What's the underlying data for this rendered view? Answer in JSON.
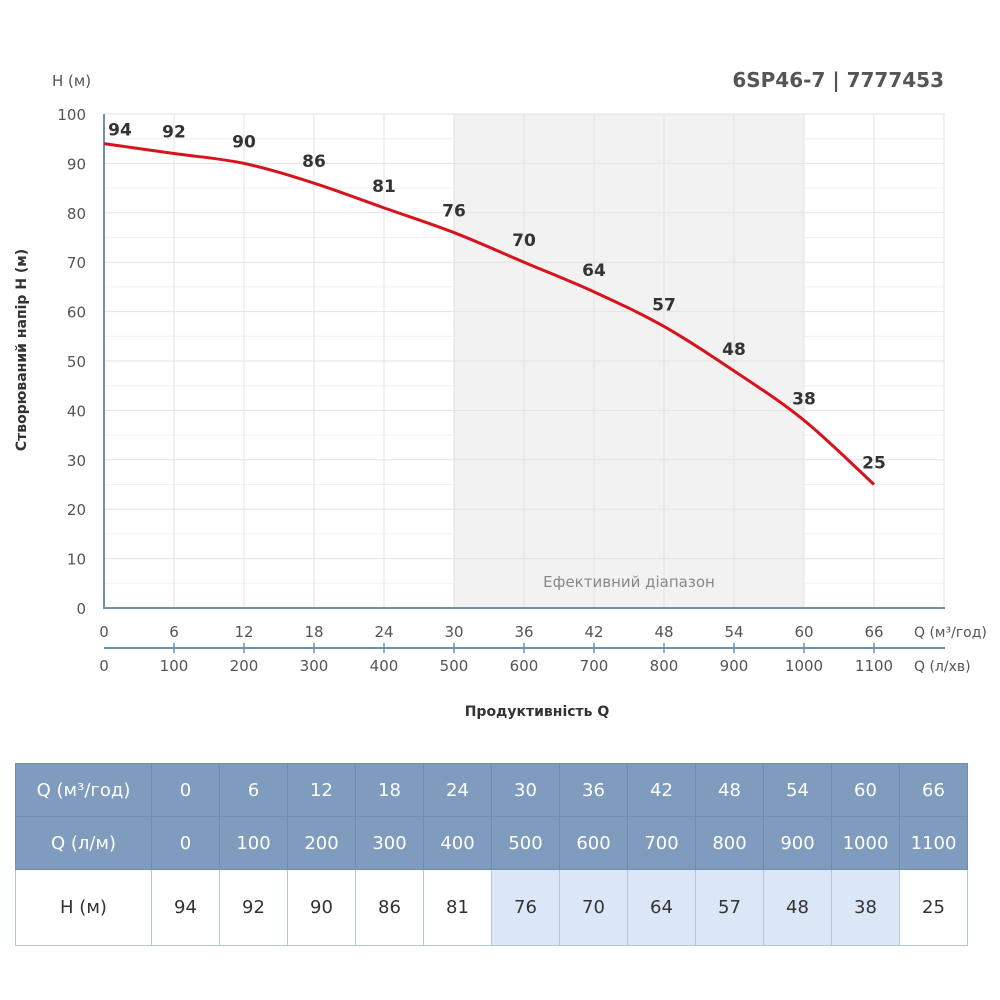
{
  "chart_data": {
    "type": "line",
    "title": "6SP46-7 | 7777453",
    "ylabel": "Створюваний напір H (м)",
    "ylabel_unit": "H (м)",
    "xlabel": "Продуктивність Q",
    "x_unit_primary": "Q (м³/год)",
    "x_unit_secondary": "Q (л/хв)",
    "x": [
      0,
      6,
      12,
      18,
      24,
      30,
      36,
      42,
      48,
      54,
      60,
      66
    ],
    "x_secondary": [
      0,
      100,
      200,
      300,
      400,
      500,
      600,
      700,
      800,
      900,
      1000,
      1100
    ],
    "values": [
      94,
      92,
      90,
      86,
      81,
      76,
      70,
      64,
      57,
      48,
      38,
      25
    ],
    "ylim": [
      0,
      100
    ],
    "yticks": [
      0,
      10,
      20,
      30,
      40,
      50,
      60,
      70,
      80,
      90,
      100
    ],
    "xlim": [
      0,
      72
    ],
    "grid": true,
    "efficient_range": {
      "label": "Ефективний діапазон",
      "from": 30,
      "to": 60
    },
    "colors": {
      "line": "#d7141e",
      "axis": "#6b93b0",
      "band": "#f2f2f2",
      "header": "#7f9cbe",
      "highlight": "#dbe7f6"
    }
  },
  "table": {
    "row_labels": [
      "Q (м³/год)",
      "Q (л/м)",
      "H (м)"
    ],
    "q_m3h": [
      "0",
      "6",
      "12",
      "18",
      "24",
      "30",
      "36",
      "42",
      "48",
      "54",
      "60",
      "66"
    ],
    "q_lm": [
      "0",
      "100",
      "200",
      "300",
      "400",
      "500",
      "600",
      "700",
      "800",
      "900",
      "1000",
      "1100"
    ],
    "h": [
      "94",
      "92",
      "90",
      "86",
      "81",
      "76",
      "70",
      "64",
      "57",
      "48",
      "38",
      "25"
    ],
    "highlighted": [
      false,
      false,
      false,
      false,
      false,
      true,
      true,
      true,
      true,
      true,
      true,
      false
    ]
  }
}
